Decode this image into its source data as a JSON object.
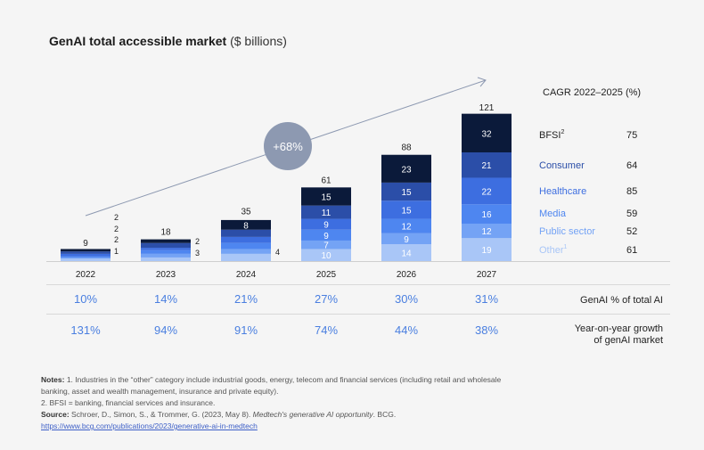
{
  "title": {
    "main": "GenAI total accessible market",
    "unit": "($ billions)"
  },
  "colors": {
    "BFSI": "#0b1a3a",
    "Consumer": "#2b4ea8",
    "Healthcare": "#3d6ee0",
    "Media": "#4e86f0",
    "Public sector": "#74a3f5",
    "Other": "#a9c6f7",
    "accent_text": "#4a7fe0",
    "circle": "#8d99b1",
    "arrow": "#8d99b1"
  },
  "chart_data": {
    "type": "bar",
    "stacked": true,
    "title": "GenAI total accessible market ($ billions)",
    "categories": [
      "2022",
      "2023",
      "2024",
      "2025",
      "2026",
      "2027"
    ],
    "totals": [
      9,
      18,
      35,
      61,
      88,
      121
    ],
    "series": [
      {
        "name": "Other",
        "values": [
          2,
          3,
          6,
          10,
          14,
          19
        ]
      },
      {
        "name": "Public sector",
        "values": [
          1,
          3,
          4,
          7,
          9,
          12
        ]
      },
      {
        "name": "Media",
        "values": [
          1,
          3,
          5,
          9,
          12,
          16
        ]
      },
      {
        "name": "Healthcare",
        "values": [
          2,
          2,
          5,
          9,
          15,
          22
        ]
      },
      {
        "name": "Consumer",
        "values": [
          2,
          4,
          6,
          11,
          15,
          21
        ]
      },
      {
        "name": "BFSI",
        "values": [
          2,
          3,
          8,
          15,
          23,
          32
        ]
      }
    ],
    "growth_badge": "+68%",
    "legend_title": "CAGR 2022–2025 (%)",
    "legend": [
      {
        "label": "BFSI",
        "sup": "2",
        "cagr": "75"
      },
      {
        "label": "Consumer",
        "sup": "",
        "cagr": "64"
      },
      {
        "label": "Healthcare",
        "sup": "",
        "cagr": "85"
      },
      {
        "label": "Media",
        "sup": "",
        "cagr": "59"
      },
      {
        "label": "Public sector",
        "sup": "",
        "cagr": "52"
      },
      {
        "label": "Other",
        "sup": "1",
        "cagr": "61"
      }
    ],
    "rows": [
      {
        "label": "GenAI % of total AI",
        "values": [
          "10%",
          "14%",
          "21%",
          "27%",
          "30%",
          "31%"
        ]
      },
      {
        "label": "Year-on-year growth of genAI market",
        "values": [
          "131%",
          "94%",
          "91%",
          "74%",
          "44%",
          "38%"
        ]
      }
    ]
  },
  "notes": {
    "label": "Notes:",
    "note1": "1. Industries in the “other” category include industrial goods, energy, telecom and financial services (including retail and wholesale banking, asset and wealth management, insurance and private equity).",
    "note2": "2. BFSI = banking, financial services and insurance.",
    "source_label": "Source:",
    "source_text": "Schroer, D., Simon, S., & Trommer, G. (2023, May 8).",
    "source_title": "Medtech's generative AI opportunity",
    "source_publisher": ". BCG.",
    "source_url": "https://www.bcg.com/publications/2023/generative-ai-in-medtech"
  }
}
